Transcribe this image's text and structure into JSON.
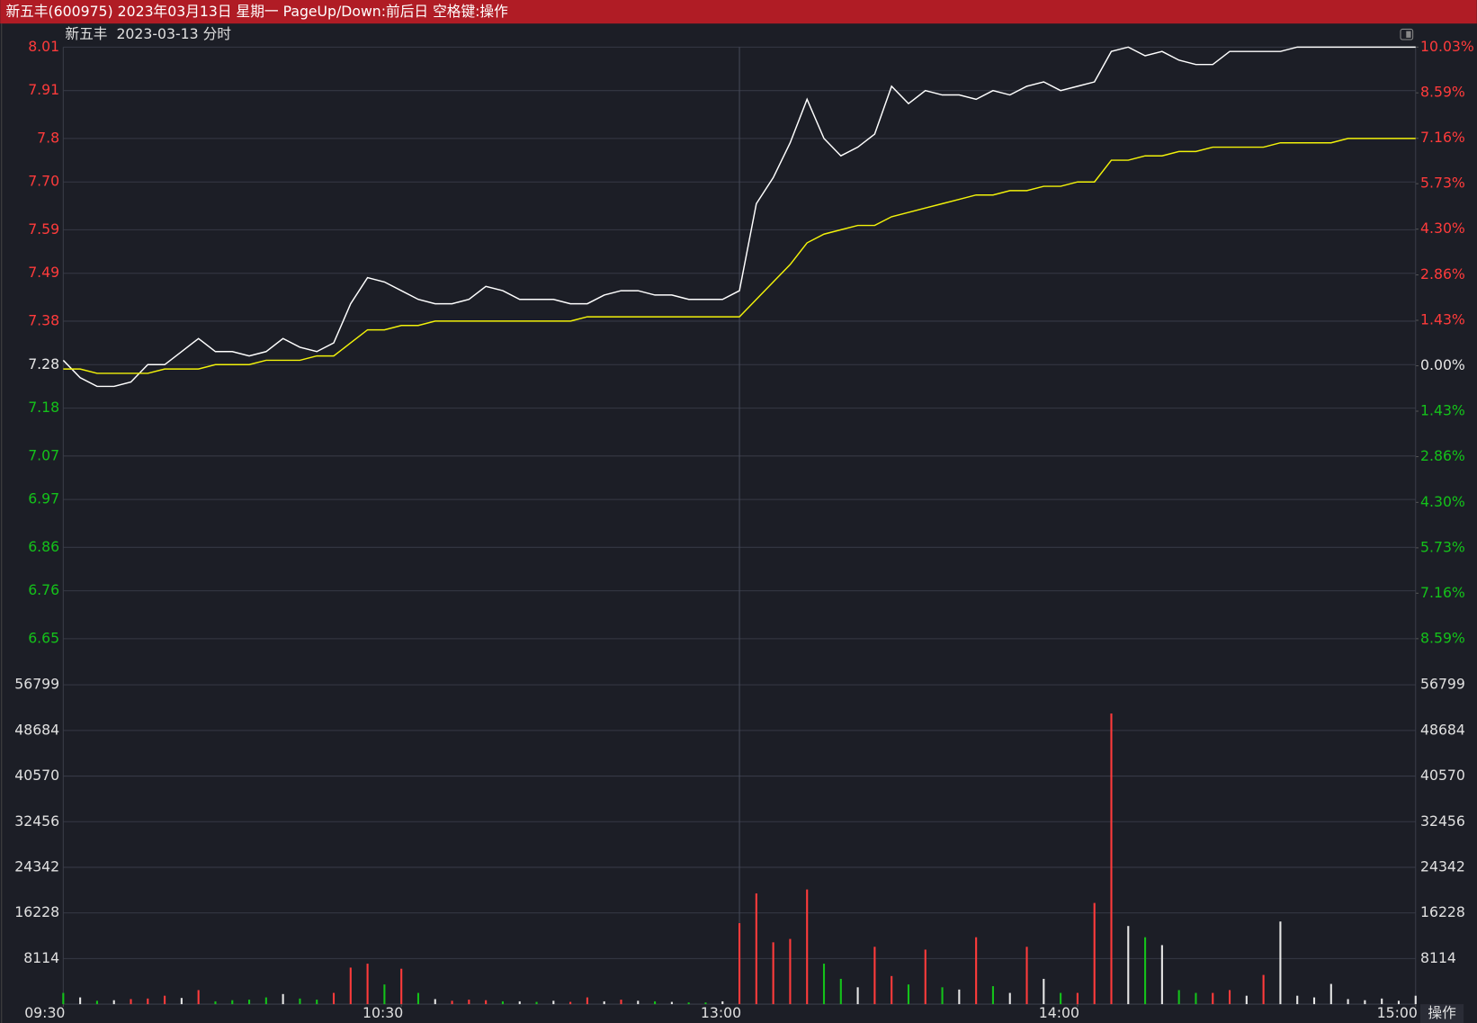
{
  "window_title": "新五丰(600975) 2023年03月13日 星期一 PageUp/Down:前后日 空格键:操作",
  "button": "操作",
  "chart_data": {
    "type": "line",
    "title": "新五丰  2023-03-13 分时",
    "x": [
      0,
      3,
      6,
      9,
      12,
      15,
      18,
      21,
      24,
      27,
      30,
      33,
      36,
      39,
      42,
      45,
      48,
      51,
      54,
      57,
      60,
      63,
      66,
      69,
      72,
      75,
      78,
      81,
      84,
      87,
      90,
      93,
      96,
      99,
      102,
      105,
      108,
      111,
      114,
      117,
      120,
      123,
      126,
      129,
      132,
      135,
      138,
      141,
      144,
      147,
      150,
      153,
      156,
      159,
      162,
      165,
      168,
      171,
      174,
      177,
      180,
      183,
      186,
      189,
      192,
      195,
      198,
      201,
      204,
      207,
      210,
      213,
      216,
      219,
      222,
      225,
      228,
      231,
      234,
      237,
      240
    ],
    "xlim": [
      0,
      240
    ],
    "xticks": [
      {
        "value": 0,
        "label": "09:30"
      },
      {
        "value": 60,
        "label": "10:30"
      },
      {
        "value": 120,
        "label": "13:00"
      },
      {
        "value": 180,
        "label": "14:00"
      },
      {
        "value": 240,
        "label": "15:00"
      }
    ],
    "ylim": [
      6.65,
      8.01
    ],
    "yticks": [
      8.01,
      7.91,
      7.8,
      {
        "value": 7.7,
        "label": "7.70"
      },
      7.59,
      7.49,
      7.38,
      7.28,
      7.18,
      7.07,
      6.97,
      6.86,
      6.76,
      6.65
    ],
    "y2lim": [
      -8.59,
      10.03
    ],
    "y2ticks": [
      {
        "value": 10.03,
        "label": "10.03%"
      },
      {
        "value": 8.59,
        "label": "8.59%"
      },
      {
        "value": 7.16,
        "label": "7.16%"
      },
      {
        "value": 5.73,
        "label": "5.73%"
      },
      {
        "value": 4.3,
        "label": "4.30%"
      },
      {
        "value": 2.86,
        "label": "2.86%"
      },
      {
        "value": 1.43,
        "label": "1.43%"
      },
      {
        "value": 0,
        "label": "0.00%"
      },
      {
        "value": -1.43,
        "label": "1.43%"
      },
      {
        "value": -2.86,
        "label": "2.86%"
      },
      {
        "value": -4.3,
        "label": "4.30%"
      },
      {
        "value": -5.73,
        "label": "5.73%"
      },
      {
        "value": -7.16,
        "label": "7.16%"
      },
      {
        "value": -8.59,
        "label": "8.59%"
      }
    ],
    "up_color": "#ff3b3b",
    "down_color": "#14c21a",
    "flat_color": "#e6e6e6",
    "grid": true,
    "series": [
      {
        "color": "#ffffff",
        "values": [
          7.29,
          7.25,
          7.23,
          7.23,
          7.24,
          7.28,
          7.28,
          7.31,
          7.34,
          7.31,
          7.31,
          7.3,
          7.31,
          7.34,
          7.32,
          7.31,
          7.33,
          7.42,
          7.48,
          7.47,
          7.45,
          7.43,
          7.42,
          7.42,
          7.43,
          7.46,
          7.45,
          7.43,
          7.43,
          7.43,
          7.42,
          7.42,
          7.44,
          7.45,
          7.45,
          7.44,
          7.44,
          7.43,
          7.43,
          7.43,
          7.45,
          7.65,
          7.71,
          7.79,
          7.89,
          7.8,
          7.76,
          7.78,
          7.81,
          7.92,
          7.88,
          7.91,
          7.9,
          7.9,
          7.89,
          7.91,
          7.9,
          7.92,
          7.93,
          7.91,
          7.92,
          7.93,
          8.0,
          8.01,
          7.99,
          8.0,
          7.98,
          7.97,
          7.97,
          8.0,
          8.0,
          8.0,
          8.0,
          8.01,
          8.01,
          8.01,
          8.01,
          8.01,
          8.01,
          8.01,
          8.01
        ]
      },
      {
        "color": "#f2f20a",
        "values": [
          7.27,
          7.27,
          7.26,
          7.26,
          7.26,
          7.26,
          7.27,
          7.27,
          7.27,
          7.28,
          7.28,
          7.28,
          7.29,
          7.29,
          7.29,
          7.3,
          7.3,
          7.33,
          7.36,
          7.36,
          7.37,
          7.37,
          7.38,
          7.38,
          7.38,
          7.38,
          7.38,
          7.38,
          7.38,
          7.38,
          7.38,
          7.39,
          7.39,
          7.39,
          7.39,
          7.39,
          7.39,
          7.39,
          7.39,
          7.39,
          7.39,
          7.43,
          7.47,
          7.51,
          7.56,
          7.58,
          7.59,
          7.6,
          7.6,
          7.62,
          7.63,
          7.64,
          7.65,
          7.66,
          7.67,
          7.67,
          7.68,
          7.68,
          7.69,
          7.69,
          7.7,
          7.7,
          7.75,
          7.75,
          7.76,
          7.76,
          7.77,
          7.77,
          7.78,
          7.78,
          7.78,
          7.78,
          7.79,
          7.79,
          7.79,
          7.79,
          7.8,
          7.8,
          7.8,
          7.8,
          7.8
        ]
      }
    ],
    "volume": {
      "ylim": [
        0,
        56799
      ],
      "yticks": [
        56799,
        48684,
        40570,
        32456,
        24342,
        16228,
        8114
      ],
      "values": [
        2000,
        1200,
        600,
        700,
        900,
        1000,
        1500,
        1100,
        2500,
        500,
        700,
        800,
        1200,
        1800,
        1000,
        800,
        2000,
        6500,
        7200,
        3500,
        6300,
        2000,
        900,
        600,
        800,
        700,
        500,
        500,
        400,
        600,
        400,
        1200,
        500,
        800,
        600,
        500,
        400,
        300,
        300,
        500,
        14400,
        19700,
        11000,
        11600,
        20400,
        7200,
        4500,
        3000,
        10200,
        5000,
        3500,
        9700,
        3000,
        2600,
        11900,
        3200,
        2000,
        10200,
        4500,
        2000,
        2000,
        18000,
        51700,
        13900,
        11900,
        10500,
        2500,
        2000,
        2000,
        2500,
        1500,
        5200,
        14700,
        1500,
        1200,
        3600,
        900,
        700,
        1000,
        600,
        1500
      ],
      "colors": [
        "#14c21a",
        "#e6e6e6",
        "#14c21a",
        "#e6e6e6",
        "#ff3b3b",
        "#ff3b3b",
        "#ff3b3b",
        "#e6e6e6",
        "#ff3b3b",
        "#14c21a",
        "#14c21a",
        "#14c21a",
        "#14c21a",
        "#e6e6e6",
        "#14c21a",
        "#14c21a",
        "#ff3b3b",
        "#ff3b3b",
        "#ff3b3b",
        "#14c21a",
        "#ff3b3b",
        "#14c21a",
        "#e6e6e6",
        "#ff3b3b",
        "#ff3b3b",
        "#ff3b3b",
        "#14c21a",
        "#e6e6e6",
        "#14c21a",
        "#e6e6e6",
        "#ff3b3b",
        "#ff3b3b",
        "#e6e6e6",
        "#ff3b3b",
        "#e6e6e6",
        "#14c21a",
        "#e6e6e6",
        "#14c21a",
        "#14c21a",
        "#e6e6e6",
        "#ff3b3b",
        "#ff3b3b",
        "#ff3b3b",
        "#ff3b3b",
        "#ff3b3b",
        "#14c21a",
        "#14c21a",
        "#e6e6e6",
        "#ff3b3b",
        "#ff3b3b",
        "#14c21a",
        "#ff3b3b",
        "#14c21a",
        "#e6e6e6",
        "#ff3b3b",
        "#14c21a",
        "#e6e6e6",
        "#ff3b3b",
        "#e6e6e6",
        "#14c21a",
        "#ff3b3b",
        "#ff3b3b",
        "#ff3b3b",
        "#e6e6e6",
        "#14c21a",
        "#e6e6e6",
        "#14c21a",
        "#14c21a",
        "#ff3b3b",
        "#ff3b3b",
        "#e6e6e6",
        "#ff3b3b",
        "#e6e6e6",
        "#e6e6e6",
        "#e6e6e6",
        "#e6e6e6",
        "#e6e6e6",
        "#e6e6e6",
        "#e6e6e6",
        "#e6e6e6",
        "#e6e6e6"
      ]
    }
  }
}
